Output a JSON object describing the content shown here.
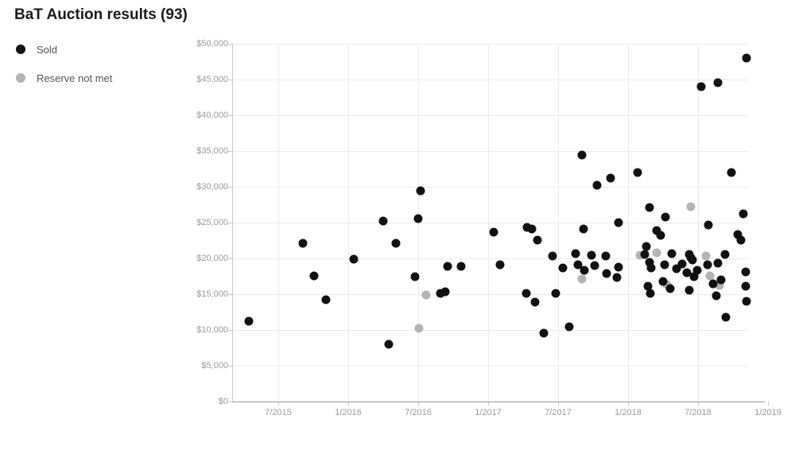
{
  "page": {
    "title": "BaT Auction results (93)"
  },
  "legend": [
    {
      "label": "Sold",
      "color": "#111111"
    },
    {
      "label": "Reserve not met",
      "color": "#b4b4b4"
    }
  ],
  "chart_data": {
    "type": "scatter",
    "title": "BaT Auction results (93)",
    "xlabel": "",
    "ylabel": "",
    "x_range": [
      2015.17,
      2019.108
    ],
    "y_range": [
      0,
      50000
    ],
    "grid": true,
    "legend_position": "top-left",
    "x_ticks": [
      {
        "v": 2015.5,
        "label": "7/2015"
      },
      {
        "v": 2016.0,
        "label": "1/2016"
      },
      {
        "v": 2016.5,
        "label": "7/2016"
      },
      {
        "v": 2017.0,
        "label": "1/2017"
      },
      {
        "v": 2017.5,
        "label": "7/2017"
      },
      {
        "v": 2018.0,
        "label": "1/2018"
      },
      {
        "v": 2018.5,
        "label": "7/2018"
      },
      {
        "v": 2019.0,
        "label": "1/2019"
      }
    ],
    "y_ticks": [
      {
        "v": 0,
        "label": "$0"
      },
      {
        "v": 5000,
        "label": "$5,000"
      },
      {
        "v": 10000,
        "label": "$10,000"
      },
      {
        "v": 15000,
        "label": "$15,000"
      },
      {
        "v": 20000,
        "label": "$20,000"
      },
      {
        "v": 25000,
        "label": "$25,000"
      },
      {
        "v": 30000,
        "label": "$30,000"
      },
      {
        "v": 35000,
        "label": "$35,000"
      },
      {
        "v": 40000,
        "label": "$40,000"
      },
      {
        "v": 45000,
        "label": "$45,000"
      },
      {
        "v": 50000,
        "label": "$50,000"
      }
    ],
    "series": [
      {
        "name": "Sold",
        "color": "#111111",
        "points": [
          [
            2015.29,
            11200
          ],
          [
            2015.676,
            22100
          ],
          [
            2015.756,
            17600
          ],
          [
            2015.841,
            14200
          ],
          [
            2016.04,
            19900
          ],
          [
            2016.25,
            25200
          ],
          [
            2016.29,
            8000
          ],
          [
            2016.341,
            22100
          ],
          [
            2016.477,
            17400
          ],
          [
            2016.5,
            25600
          ],
          [
            2016.517,
            29400
          ],
          [
            2016.659,
            15100
          ],
          [
            2016.693,
            15300
          ],
          [
            2016.71,
            18900
          ],
          [
            2016.807,
            18900
          ],
          [
            2017.04,
            23700
          ],
          [
            2017.085,
            19100
          ],
          [
            2017.273,
            15100
          ],
          [
            2017.278,
            24300
          ],
          [
            2017.313,
            24100
          ],
          [
            2017.335,
            13900
          ],
          [
            2017.352,
            22600
          ],
          [
            2017.398,
            9600
          ],
          [
            2017.46,
            20300
          ],
          [
            2017.483,
            15100
          ],
          [
            2017.534,
            18700
          ],
          [
            2017.58,
            10400
          ],
          [
            2017.625,
            20700
          ],
          [
            2017.642,
            19100
          ],
          [
            2017.67,
            34400
          ],
          [
            2017.682,
            24100
          ],
          [
            2017.687,
            18300
          ],
          [
            2017.739,
            20400
          ],
          [
            2017.761,
            19000
          ],
          [
            2017.778,
            30200
          ],
          [
            2017.841,
            20300
          ],
          [
            2017.847,
            17900
          ],
          [
            2017.875,
            31200
          ],
          [
            2017.92,
            17300
          ],
          [
            2017.932,
            18800
          ],
          [
            2017.932,
            25000
          ],
          [
            2018.068,
            32000
          ],
          [
            2018.119,
            20600
          ],
          [
            2018.131,
            21700
          ],
          [
            2018.142,
            16100
          ],
          [
            2018.153,
            27100
          ],
          [
            2018.153,
            19400
          ],
          [
            2018.159,
            15100
          ],
          [
            2018.165,
            18700
          ],
          [
            2018.205,
            23900
          ],
          [
            2018.233,
            23200
          ],
          [
            2018.25,
            16800
          ],
          [
            2018.261,
            19100
          ],
          [
            2018.267,
            25800
          ],
          [
            2018.301,
            15800
          ],
          [
            2018.313,
            20700
          ],
          [
            2018.347,
            18600
          ],
          [
            2018.386,
            19200
          ],
          [
            2018.42,
            18000
          ],
          [
            2018.438,
            20600
          ],
          [
            2018.438,
            15600
          ],
          [
            2018.449,
            20100
          ],
          [
            2018.46,
            19800
          ],
          [
            2018.472,
            17400
          ],
          [
            2018.494,
            18300
          ],
          [
            2018.523,
            44000
          ],
          [
            2018.568,
            19100
          ],
          [
            2018.574,
            24700
          ],
          [
            2018.608,
            16400
          ],
          [
            2018.631,
            14800
          ],
          [
            2018.642,
            44600
          ],
          [
            2018.642,
            19300
          ],
          [
            2018.665,
            17000
          ],
          [
            2018.693,
            20600
          ],
          [
            2018.699,
            11800
          ],
          [
            2018.739,
            32000
          ],
          [
            2018.784,
            23300
          ],
          [
            2018.807,
            22600
          ],
          [
            2018.824,
            26200
          ],
          [
            2018.841,
            18100
          ],
          [
            2018.841,
            16100
          ],
          [
            2018.847,
            48000
          ],
          [
            2018.847,
            14000
          ]
        ]
      },
      {
        "name": "Reserve not met",
        "color": "#b4b4b4",
        "points": [
          [
            2016.506,
            10200
          ],
          [
            2016.557,
            14900
          ],
          [
            2017.67,
            17100
          ],
          [
            2018.085,
            20400
          ],
          [
            2018.205,
            20800
          ],
          [
            2018.278,
            16300
          ],
          [
            2018.449,
            27200
          ],
          [
            2018.557,
            20300
          ],
          [
            2018.585,
            17600
          ],
          [
            2018.653,
            16200
          ]
        ]
      }
    ]
  }
}
